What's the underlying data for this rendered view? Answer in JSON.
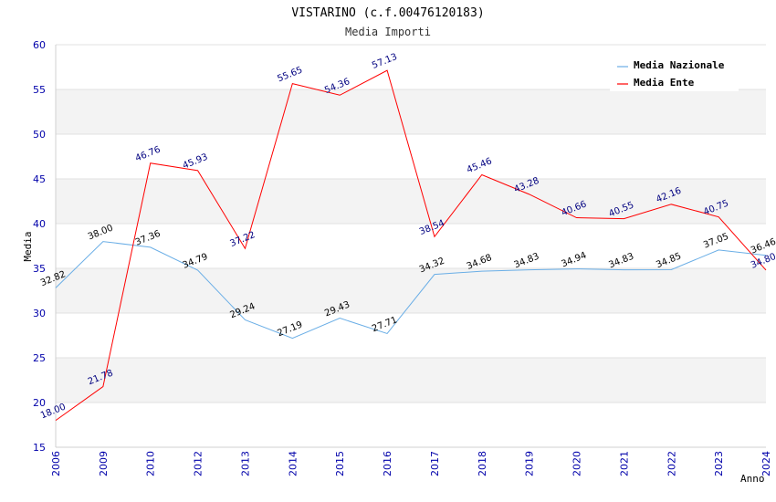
{
  "chart_data": {
    "type": "line",
    "title": "VISTARINO (c.f.00476120183)",
    "subtitle": "Media Importi",
    "xlabel": "Anno",
    "ylabel": "Media",
    "ylim": [
      15,
      60
    ],
    "yticks": [
      "15",
      "20",
      "25",
      "30",
      "35",
      "40",
      "45",
      "50",
      "55",
      "60"
    ],
    "categories": [
      "2006",
      "2009",
      "2010",
      "2012",
      "2013",
      "2014",
      "2015",
      "2016",
      "2017",
      "2018",
      "2019",
      "2020",
      "2021",
      "2022",
      "2023",
      "2024"
    ],
    "legend_position": "top-right",
    "series": [
      {
        "name": "Media Nazionale",
        "color": "#6aaee6",
        "values": [
          32.82,
          38.0,
          37.36,
          34.79,
          29.24,
          27.19,
          29.43,
          27.71,
          34.32,
          34.68,
          34.83,
          34.94,
          34.83,
          34.85,
          37.05,
          36.46
        ],
        "labels": [
          "32.82",
          "38.00",
          "37.36",
          "34.79",
          "29.24",
          "27.19",
          "29.43",
          "27.71",
          "34.32",
          "34.68",
          "34.83",
          "34.94",
          "34.83",
          "34.85",
          "37.05",
          "36.46"
        ]
      },
      {
        "name": "Media Ente",
        "color": "#ff0000",
        "values": [
          18.0,
          21.78,
          46.76,
          45.93,
          37.22,
          55.65,
          54.36,
          57.13,
          38.54,
          45.46,
          43.28,
          40.66,
          40.55,
          42.16,
          40.75,
          34.8
        ],
        "labels": [
          "18.00",
          "21.78",
          "46.76",
          "45.93",
          "37.22",
          "55.65",
          "54.36",
          "57.13",
          "38.54",
          "45.46",
          "43.28",
          "40.66",
          "40.55",
          "42.16",
          "40.75",
          "34.80"
        ]
      }
    ]
  }
}
